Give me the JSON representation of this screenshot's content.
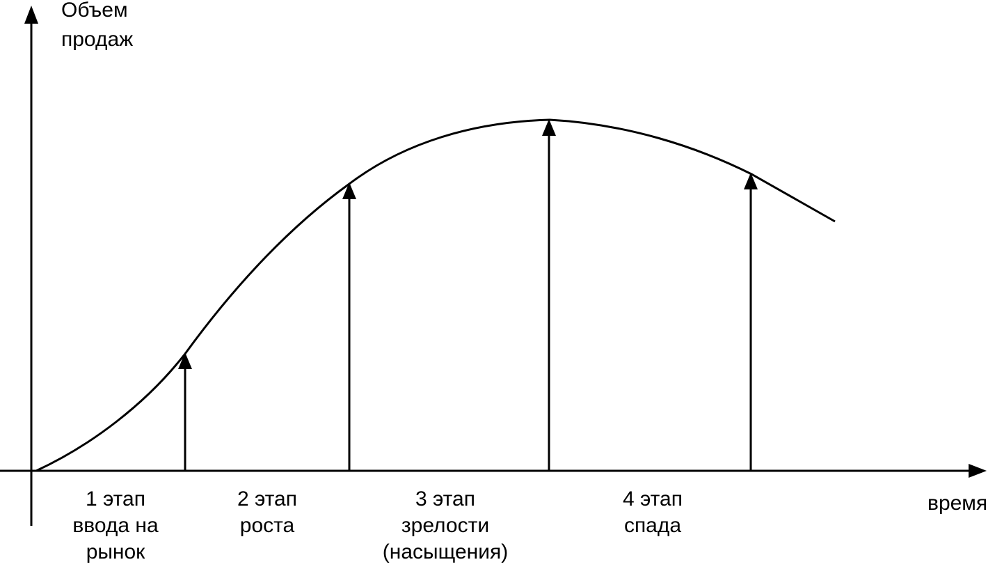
{
  "diagram": {
    "y_axis_label": [
      "Объем",
      "продаж"
    ],
    "x_axis_label": "время",
    "curve_color": "#000000",
    "stages": [
      {
        "label_lines": [
          "1 этап",
          "ввода на",
          "рынок"
        ]
      },
      {
        "label_lines": [
          "2 этап",
          "роста"
        ]
      },
      {
        "label_lines": [
          "3 этап",
          "зрелости",
          "(насыщения)"
        ]
      },
      {
        "label_lines": [
          "4 этап",
          "спада"
        ]
      }
    ]
  }
}
